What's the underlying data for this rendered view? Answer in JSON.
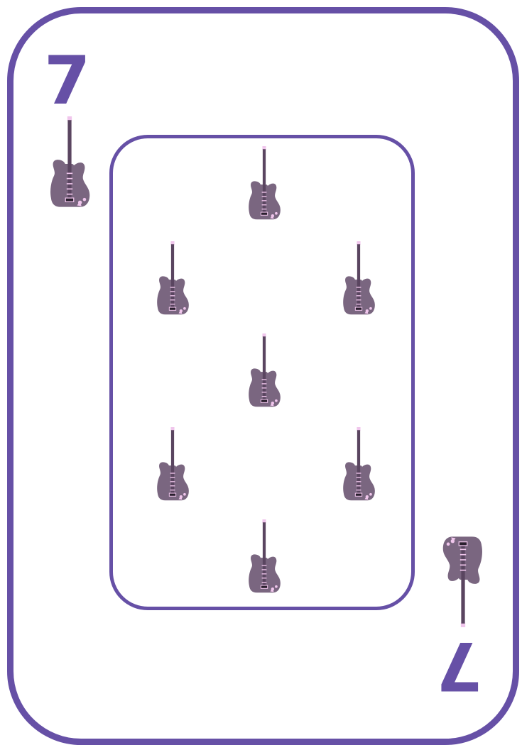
{
  "card": {
    "rank": "7",
    "suit_icon": "electric-guitar-icon",
    "pip_count": 7
  },
  "colors": {
    "border": "#6650a6",
    "guitar_body": "#7a6680",
    "guitar_neck": "#5a4560",
    "accent": "#f0c6ec"
  }
}
